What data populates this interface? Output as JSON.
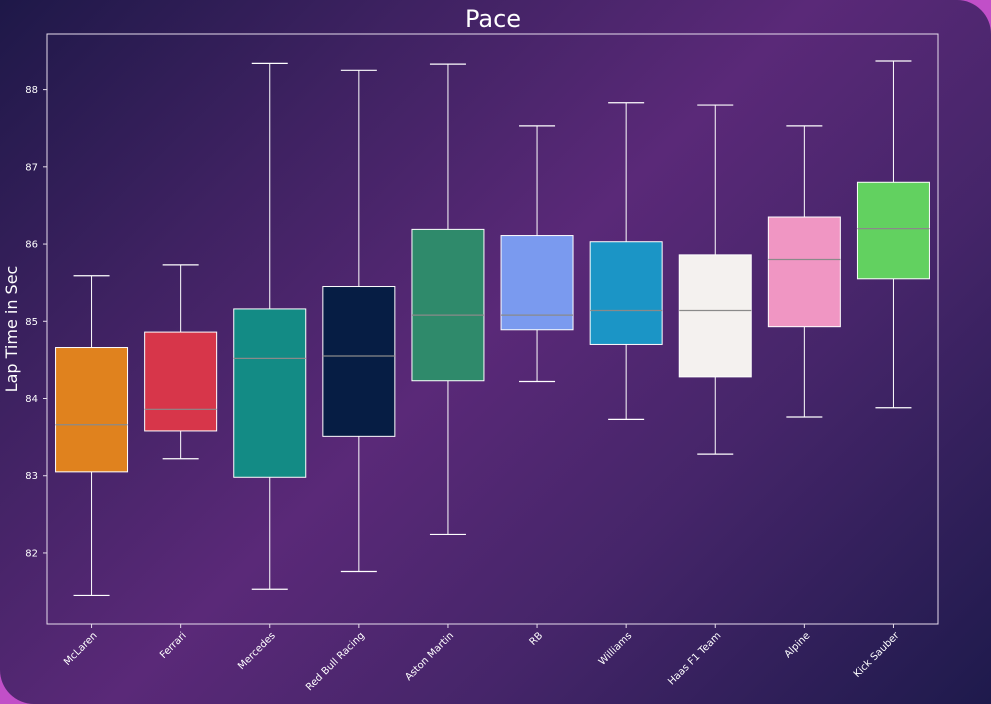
{
  "chart_data": {
    "type": "box",
    "title": "Pace",
    "xlabel": "",
    "ylabel": "Lap Time in Sec",
    "ylim": [
      81.08,
      88.72
    ],
    "yticks": [
      82,
      83,
      84,
      85,
      86,
      87,
      88
    ],
    "grid": false,
    "legend": "none",
    "categories": [
      "McLaren",
      "Ferrari",
      "Mercedes",
      "Red Bull Racing",
      "Aston Martin",
      "RB",
      "Williams",
      "Haas F1 Team",
      "Alpine",
      "Kick Sauber"
    ],
    "boxes": [
      {
        "team": "McLaren",
        "color": "#e0821e",
        "min": 81.45,
        "q1": 83.05,
        "median": 83.66,
        "q3": 84.66,
        "max": 85.59
      },
      {
        "team": "Ferrari",
        "color": "#d7364a",
        "min": 83.22,
        "q1": 83.58,
        "median": 83.86,
        "q3": 84.86,
        "max": 85.73
      },
      {
        "team": "Mercedes",
        "color": "#138b85",
        "min": 81.53,
        "q1": 82.98,
        "median": 84.52,
        "q3": 85.16,
        "max": 88.34
      },
      {
        "team": "Red Bull Racing",
        "color": "#061d44",
        "min": 81.76,
        "q1": 83.51,
        "median": 84.55,
        "q3": 85.45,
        "max": 88.25
      },
      {
        "team": "Aston Martin",
        "color": "#2f8a6b",
        "min": 82.24,
        "q1": 84.23,
        "median": 85.08,
        "q3": 86.19,
        "max": 88.33
      },
      {
        "team": "RB",
        "color": "#7a9aef",
        "min": 84.22,
        "q1": 84.89,
        "median": 85.08,
        "q3": 86.11,
        "max": 87.53
      },
      {
        "team": "Williams",
        "color": "#1b95c6",
        "min": 83.73,
        "q1": 84.7,
        "median": 85.14,
        "q3": 86.03,
        "max": 87.83
      },
      {
        "team": "Haas F1 Team",
        "color": "#f4f1ef",
        "min": 83.28,
        "q1": 84.28,
        "median": 85.14,
        "q3": 85.86,
        "max": 87.8
      },
      {
        "team": "Alpine",
        "color": "#f096c3",
        "min": 83.76,
        "q1": 84.93,
        "median": 85.8,
        "q3": 86.35,
        "max": 87.53
      },
      {
        "team": "Kick Sauber",
        "color": "#62d160",
        "min": 83.88,
        "q1": 85.55,
        "median": 86.2,
        "q3": 86.8,
        "max": 88.37
      }
    ]
  }
}
